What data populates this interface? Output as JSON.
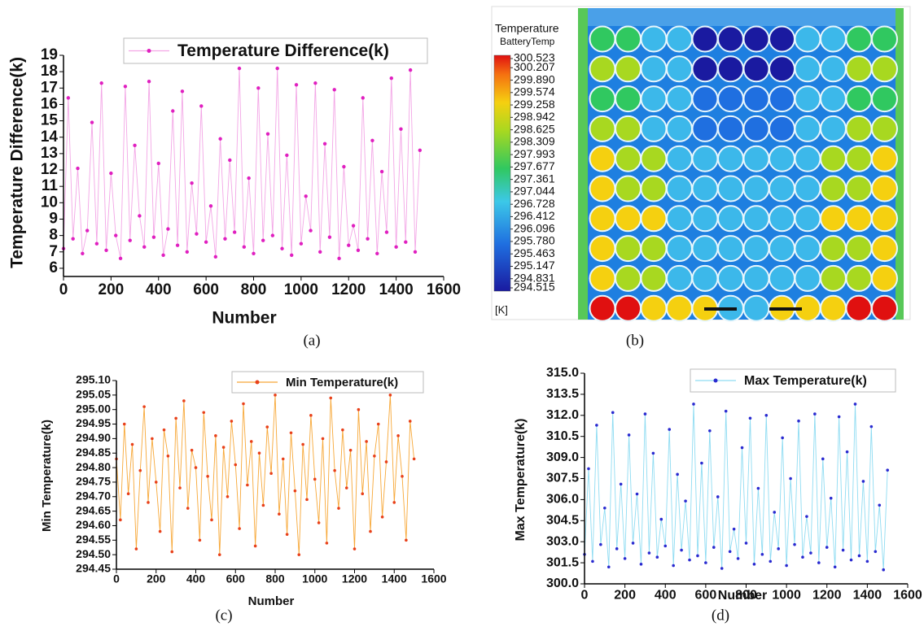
{
  "chart_data": [
    {
      "type": "line",
      "caption": "(a)",
      "x_label": "Number",
      "y_label": "Temperature Difference(k)",
      "xlim": [
        0,
        1600
      ],
      "xticks": [
        0,
        200,
        400,
        600,
        800,
        1000,
        1200,
        1400,
        1600
      ],
      "ylim": [
        5.5,
        19
      ],
      "yticks": [
        6,
        7,
        8,
        9,
        10,
        11,
        12,
        13,
        14,
        15,
        16,
        17,
        18,
        19
      ],
      "x": [
        0,
        20,
        40,
        60,
        80,
        100,
        120,
        140,
        160,
        180,
        200,
        220,
        240,
        260,
        280,
        300,
        320,
        340,
        360,
        380,
        400,
        420,
        440,
        460,
        480,
        500,
        520,
        540,
        560,
        580,
        600,
        620,
        640,
        660,
        680,
        700,
        720,
        740,
        760,
        780,
        800,
        820,
        840,
        860,
        880,
        900,
        920,
        940,
        960,
        980,
        1000,
        1020,
        1040,
        1060,
        1080,
        1100,
        1120,
        1140,
        1160,
        1180,
        1200,
        1220,
        1240,
        1260,
        1280,
        1300,
        1320,
        1340,
        1360,
        1380,
        1400,
        1420,
        1440,
        1460,
        1480,
        1500
      ],
      "series": [
        {
          "name": "Temperature Difference(k)",
          "color": "#e020c0",
          "line_color": "#f3a6e6",
          "values": [
            7.2,
            16.4,
            7.8,
            12.1,
            6.9,
            8.3,
            14.9,
            7.5,
            17.3,
            7.1,
            11.8,
            8.0,
            6.6,
            17.1,
            7.7,
            13.5,
            9.2,
            7.3,
            17.4,
            7.9,
            12.4,
            6.8,
            8.4,
            15.6,
            7.4,
            16.8,
            7.0,
            11.2,
            8.1,
            15.9,
            7.6,
            9.8,
            6.7,
            13.9,
            7.8,
            12.6,
            8.2,
            18.2,
            7.3,
            11.5,
            6.9,
            17.0,
            7.7,
            14.2,
            8.0,
            18.2,
            7.2,
            12.9,
            6.8,
            17.2,
            7.5,
            10.4,
            8.3,
            17.3,
            7.0,
            13.6,
            7.9,
            16.9,
            6.6,
            12.2,
            7.4,
            8.6,
            7.1,
            16.4,
            7.8,
            13.8,
            6.9,
            11.9,
            8.2,
            17.6,
            7.3,
            14.5,
            7.6,
            18.1,
            7.0,
            13.2
          ]
        }
      ]
    },
    {
      "type": "contour",
      "caption": "(b)",
      "title": "Temperature",
      "subtitle": "BatteryTemp",
      "unit_label": "[K]",
      "colorbar_ticks": [
        300.523,
        300.207,
        {
          "value": 299.89,
          "label": "299.890"
        },
        299.574,
        299.258,
        298.942,
        298.625,
        298.309,
        297.993,
        297.677,
        297.361,
        297.044,
        296.728,
        296.412,
        296.096,
        {
          "value": 295.78,
          "label": "295.780"
        },
        295.463,
        295.147,
        294.831,
        294.515
      ]
    },
    {
      "type": "line",
      "caption": "(c)",
      "x_label": "Number",
      "y_label": "Min Temperature(k)",
      "xlim": [
        0,
        1600
      ],
      "xticks": [
        0,
        200,
        400,
        600,
        800,
        1000,
        1200,
        1400,
        1600
      ],
      "ylim": [
        294.45,
        295.1
      ],
      "yticks": [
        294.45,
        {
          "value": 294.5,
          "label": "294.50"
        },
        294.55,
        {
          "value": 294.6,
          "label": "294.60"
        },
        294.65,
        {
          "value": 294.7,
          "label": "294.70"
        },
        294.75,
        {
          "value": 294.8,
          "label": "294.80"
        },
        294.85,
        {
          "value": 294.9,
          "label": "294.90"
        },
        294.95,
        {
          "value": 295,
          "label": "295.00"
        },
        295.05,
        {
          "value": 295.1,
          "label": "295.10"
        }
      ],
      "x": [
        0,
        20,
        40,
        60,
        80,
        100,
        120,
        140,
        160,
        180,
        200,
        220,
        240,
        260,
        280,
        300,
        320,
        340,
        360,
        380,
        400,
        420,
        440,
        460,
        480,
        500,
        520,
        540,
        560,
        580,
        600,
        620,
        640,
        660,
        680,
        700,
        720,
        740,
        760,
        780,
        800,
        820,
        840,
        860,
        880,
        900,
        920,
        940,
        960,
        980,
        1000,
        1020,
        1040,
        1060,
        1080,
        1100,
        1120,
        1140,
        1160,
        1180,
        1200,
        1220,
        1240,
        1260,
        1280,
        1300,
        1320,
        1340,
        1360,
        1380,
        1400,
        1420,
        1440,
        1460,
        1480,
        1500
      ],
      "series": [
        {
          "name": "Min Temperature(k)",
          "color": "#e8401a",
          "line_color": "#f7a838",
          "values": [
            294.83,
            294.62,
            294.95,
            294.71,
            294.88,
            294.52,
            294.79,
            295.01,
            294.68,
            294.9,
            294.75,
            294.58,
            294.93,
            294.84,
            294.51,
            294.97,
            294.73,
            295.03,
            294.66,
            294.86,
            294.8,
            294.55,
            294.99,
            294.77,
            294.62,
            294.91,
            294.5,
            294.87,
            294.7,
            294.96,
            294.81,
            294.59,
            295.02,
            294.74,
            294.89,
            294.53,
            294.85,
            294.67,
            294.94,
            294.78,
            295.05,
            294.64,
            294.83,
            294.57,
            294.92,
            294.72,
            294.5,
            294.88,
            294.69,
            294.98,
            294.76,
            294.61,
            294.9,
            294.54,
            295.04,
            294.79,
            294.66,
            294.93,
            294.73,
            294.86,
            294.52,
            295.0,
            294.71,
            294.89,
            294.58,
            294.84,
            294.95,
            294.63,
            294.82,
            295.05,
            294.68,
            294.91,
            294.77,
            294.55,
            294.96,
            294.83
          ]
        }
      ]
    },
    {
      "type": "line",
      "caption": "(d)",
      "x_label": "Number",
      "y_label": "Max Temperature(k)",
      "xlim": [
        0,
        1600
      ],
      "xticks": [
        0,
        200,
        400,
        600,
        800,
        1000,
        1200,
        1400,
        1600
      ],
      "ylim": [
        300,
        315
      ],
      "yticks": [
        {
          "value": 300,
          "label": "300.0"
        },
        301.5,
        {
          "value": 303,
          "label": "303.0"
        },
        304.5,
        {
          "value": 306,
          "label": "306.0"
        },
        307.5,
        {
          "value": 309,
          "label": "309.0"
        },
        310.5,
        {
          "value": 312,
          "label": "312.0"
        },
        313.5,
        {
          "value": 315,
          "label": "315.0"
        }
      ],
      "x": [
        0,
        20,
        40,
        60,
        80,
        100,
        120,
        140,
        160,
        180,
        200,
        220,
        240,
        260,
        280,
        300,
        320,
        340,
        360,
        380,
        400,
        420,
        440,
        460,
        480,
        500,
        520,
        540,
        560,
        580,
        600,
        620,
        640,
        660,
        680,
        700,
        720,
        740,
        760,
        780,
        800,
        820,
        840,
        860,
        880,
        900,
        920,
        940,
        960,
        980,
        1000,
        1020,
        1040,
        1060,
        1080,
        1100,
        1120,
        1140,
        1160,
        1180,
        1200,
        1220,
        1240,
        1260,
        1280,
        1300,
        1320,
        1340,
        1360,
        1380,
        1400,
        1420,
        1440,
        1460,
        1480,
        1500
      ],
      "series": [
        {
          "name": "Max Temperature(k)",
          "color": "#2a2ad0",
          "line_color": "#8fdcf2",
          "values": [
            302.1,
            308.2,
            301.6,
            311.3,
            302.8,
            305.4,
            301.2,
            312.2,
            302.5,
            307.1,
            301.8,
            310.6,
            302.9,
            306.4,
            301.4,
            312.1,
            302.2,
            309.3,
            301.9,
            304.6,
            302.7,
            311.0,
            301.3,
            307.8,
            302.4,
            305.9,
            301.7,
            312.8,
            302.0,
            308.6,
            301.5,
            310.9,
            302.6,
            306.2,
            301.1,
            312.3,
            302.3,
            303.9,
            301.8,
            309.7,
            302.9,
            311.8,
            301.4,
            306.8,
            302.1,
            312.0,
            301.6,
            305.1,
            302.5,
            310.4,
            301.3,
            307.5,
            302.8,
            311.6,
            301.9,
            304.8,
            302.2,
            312.1,
            301.5,
            308.9,
            302.6,
            306.1,
            301.2,
            311.9,
            302.4,
            309.4,
            301.7,
            312.8,
            302.0,
            307.3,
            301.6,
            311.2,
            302.3,
            305.6,
            301.0,
            308.1
          ]
        }
      ]
    }
  ]
}
